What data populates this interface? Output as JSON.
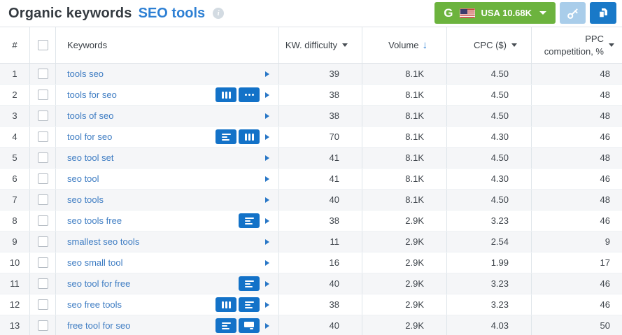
{
  "page": {
    "title": "Organic keywords",
    "subtitle": "SEO tools",
    "info_icon": "i"
  },
  "toolbar": {
    "search_engine_button": {
      "provider_letter": "G",
      "flag": "us-flag-icon",
      "label": "USA 10.68K"
    },
    "key_button_icon": "key-icon",
    "export_button_icon": "copy-pages-icon"
  },
  "colors": {
    "accent_blue": "#2e80d4",
    "link_blue": "#3f7dc3",
    "badge_blue": "#1372c8",
    "button_green": "#6cb33e",
    "button_light_blue": "#a9cdea",
    "button_dark_blue": "#1979c8",
    "alt_row_bg": "#f5f6f8"
  },
  "table": {
    "header": {
      "num": "#",
      "keywords": "Keywords",
      "kw_difficulty": "KW. difficulty",
      "volume": "Volume",
      "volume_sort_arrow": "↓",
      "cpc": "CPC ($)",
      "ppc_line1": "PPC",
      "ppc_line2": "competition, %"
    },
    "sorted_by": "volume",
    "rows": [
      {
        "num": "1",
        "keyword": "tools seo",
        "badges": [],
        "kw_difficulty": "39",
        "volume": "8.1K",
        "cpc": "4.50",
        "ppc_competition": "48"
      },
      {
        "num": "2",
        "keyword": "tools for seo",
        "badges": [
          "columns",
          "ellipsis"
        ],
        "kw_difficulty": "38",
        "volume": "8.1K",
        "cpc": "4.50",
        "ppc_competition": "48"
      },
      {
        "num": "3",
        "keyword": "tools of seo",
        "badges": [],
        "kw_difficulty": "38",
        "volume": "8.1K",
        "cpc": "4.50",
        "ppc_competition": "48"
      },
      {
        "num": "4",
        "keyword": "tool for seo",
        "badges": [
          "lines",
          "columns"
        ],
        "kw_difficulty": "70",
        "volume": "8.1K",
        "cpc": "4.30",
        "ppc_competition": "46"
      },
      {
        "num": "5",
        "keyword": "seo tool set",
        "badges": [],
        "kw_difficulty": "41",
        "volume": "8.1K",
        "cpc": "4.50",
        "ppc_competition": "48"
      },
      {
        "num": "6",
        "keyword": "seo tool",
        "badges": [],
        "kw_difficulty": "41",
        "volume": "8.1K",
        "cpc": "4.30",
        "ppc_competition": "46"
      },
      {
        "num": "7",
        "keyword": "seo tools",
        "badges": [],
        "kw_difficulty": "40",
        "volume": "8.1K",
        "cpc": "4.50",
        "ppc_competition": "48"
      },
      {
        "num": "8",
        "keyword": "seo tools free",
        "badges": [
          "lines"
        ],
        "kw_difficulty": "38",
        "volume": "2.9K",
        "cpc": "3.23",
        "ppc_competition": "46"
      },
      {
        "num": "9",
        "keyword": "smallest seo tools",
        "badges": [],
        "kw_difficulty": "11",
        "volume": "2.9K",
        "cpc": "2.54",
        "ppc_competition": "9"
      },
      {
        "num": "10",
        "keyword": "seo small tool",
        "badges": [],
        "kw_difficulty": "16",
        "volume": "2.9K",
        "cpc": "1.99",
        "ppc_competition": "17"
      },
      {
        "num": "11",
        "keyword": "seo tool for free",
        "badges": [
          "lines"
        ],
        "kw_difficulty": "40",
        "volume": "2.9K",
        "cpc": "3.23",
        "ppc_competition": "46"
      },
      {
        "num": "12",
        "keyword": "seo free tools",
        "badges": [
          "columns",
          "lines"
        ],
        "kw_difficulty": "38",
        "volume": "2.9K",
        "cpc": "3.23",
        "ppc_competition": "46"
      },
      {
        "num": "13",
        "keyword": "free tool for seo",
        "badges": [
          "lines",
          "media"
        ],
        "kw_difficulty": "40",
        "volume": "2.9K",
        "cpc": "4.03",
        "ppc_competition": "50"
      }
    ]
  }
}
